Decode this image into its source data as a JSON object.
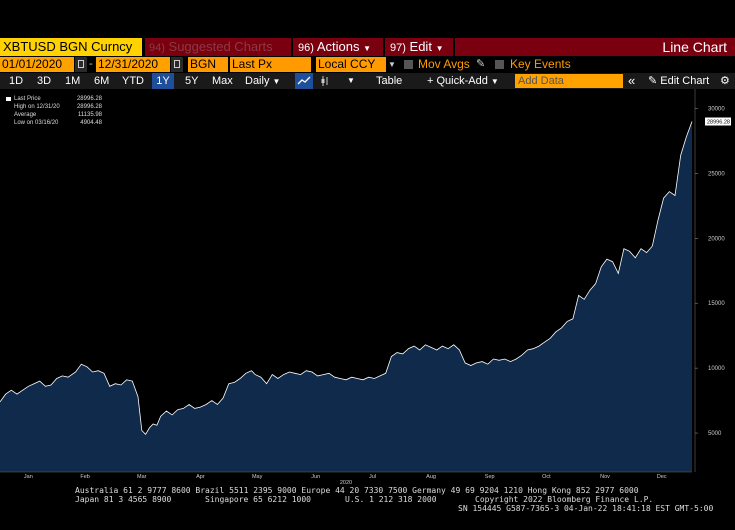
{
  "row1": {
    "ticker": "XBTUSD BGN Curncy",
    "suggested": "Suggested Charts",
    "suggested_num": "94)",
    "actions_num": "96)",
    "actions": "Actions",
    "edit_num": "97)",
    "edit": "Edit",
    "title": "Line Chart"
  },
  "row2": {
    "start_date": "01/01/2020",
    "end_date": "12/31/2020",
    "source": "BGN",
    "field": "Last Px",
    "currency": "Local CCY",
    "mov_avgs": "Mov Avgs",
    "key_events": "Key Events"
  },
  "row3": {
    "ranges": [
      "1D",
      "3D",
      "1M",
      "6M",
      "YTD",
      "1Y",
      "5Y",
      "Max"
    ],
    "selected_range": "1Y",
    "frequency": "Daily",
    "table": "Table",
    "quick_add": "+ Quick-Add",
    "add_data_placeholder": "Add Data",
    "edit_chart": "Edit Chart"
  },
  "legend": [
    {
      "label": "Last Price",
      "value": "28996.28"
    },
    {
      "label": "High on 12/31/20",
      "value": "28996.28"
    },
    {
      "label": "Average",
      "value": "11135.98"
    },
    {
      "label": "Low on 03/16/20",
      "value": "4904.48"
    }
  ],
  "colors": {
    "area_fill": "#0f2a4a",
    "line": "#ffffff",
    "menu_red": "#7a0010",
    "field_orange": "#ffa200",
    "selected_blue": "#1f4f9a"
  },
  "chart_data": {
    "type": "area",
    "series": [
      {
        "values": [
          [
            0,
            7400
          ],
          [
            3,
            8000
          ],
          [
            6,
            8300
          ],
          [
            9,
            8000
          ],
          [
            12,
            8300
          ],
          [
            15,
            8600
          ],
          [
            18,
            8800
          ],
          [
            21,
            9000
          ],
          [
            24,
            8600
          ],
          [
            27,
            8700
          ],
          [
            30,
            9200
          ],
          [
            33,
            9400
          ],
          [
            36,
            9300
          ],
          [
            40,
            9700
          ],
          [
            43,
            10300
          ],
          [
            46,
            10100
          ],
          [
            49,
            9700
          ],
          [
            52,
            9800
          ],
          [
            55,
            9600
          ],
          [
            58,
            8600
          ],
          [
            61,
            8800
          ],
          [
            64,
            8700
          ],
          [
            67,
            9100
          ],
          [
            70,
            9000
          ],
          [
            73,
            7800
          ],
          [
            75,
            5200
          ],
          [
            77,
            4904
          ],
          [
            79,
            5400
          ],
          [
            81,
            5700
          ],
          [
            83,
            5600
          ],
          [
            85,
            6300
          ],
          [
            88,
            6700
          ],
          [
            91,
            6400
          ],
          [
            94,
            6800
          ],
          [
            97,
            6900
          ],
          [
            100,
            7200
          ],
          [
            103,
            6900
          ],
          [
            106,
            7000
          ],
          [
            109,
            7200
          ],
          [
            112,
            7500
          ],
          [
            115,
            7200
          ],
          [
            118,
            7700
          ],
          [
            121,
            8800
          ],
          [
            124,
            8900
          ],
          [
            127,
            9200
          ],
          [
            130,
            9600
          ],
          [
            133,
            9800
          ],
          [
            135,
            9500
          ],
          [
            138,
            9300
          ],
          [
            141,
            8800
          ],
          [
            144,
            9500
          ],
          [
            147,
            9200
          ],
          [
            150,
            9500
          ],
          [
            153,
            9700
          ],
          [
            156,
            9600
          ],
          [
            159,
            9500
          ],
          [
            162,
            9800
          ],
          [
            165,
            9700
          ],
          [
            168,
            9400
          ],
          [
            171,
            9500
          ],
          [
            174,
            9600
          ],
          [
            177,
            9300
          ],
          [
            180,
            9200
          ],
          [
            183,
            9100
          ],
          [
            186,
            9300
          ],
          [
            189,
            9200
          ],
          [
            192,
            9100
          ],
          [
            195,
            9300
          ],
          [
            198,
            9200
          ],
          [
            201,
            9400
          ],
          [
            204,
            9600
          ],
          [
            207,
            10900
          ],
          [
            210,
            11200
          ],
          [
            213,
            11100
          ],
          [
            216,
            11500
          ],
          [
            219,
            11700
          ],
          [
            222,
            11400
          ],
          [
            225,
            11800
          ],
          [
            228,
            11600
          ],
          [
            231,
            11400
          ],
          [
            234,
            11700
          ],
          [
            237,
            11500
          ],
          [
            240,
            11800
          ],
          [
            243,
            11400
          ],
          [
            246,
            10400
          ],
          [
            249,
            10200
          ],
          [
            252,
            10400
          ],
          [
            255,
            10500
          ],
          [
            258,
            10300
          ],
          [
            261,
            10700
          ],
          [
            264,
            10600
          ],
          [
            267,
            10700
          ],
          [
            270,
            10500
          ],
          [
            273,
            10700
          ],
          [
            276,
            11000
          ],
          [
            279,
            11400
          ],
          [
            282,
            11500
          ],
          [
            285,
            11700
          ],
          [
            288,
            12000
          ],
          [
            291,
            12300
          ],
          [
            294,
            12800
          ],
          [
            297,
            13100
          ],
          [
            300,
            13600
          ],
          [
            303,
            13800
          ],
          [
            306,
            15600
          ],
          [
            309,
            15300
          ],
          [
            312,
            16000
          ],
          [
            315,
            16500
          ],
          [
            318,
            17800
          ],
          [
            321,
            18400
          ],
          [
            324,
            18200
          ],
          [
            327,
            17300
          ],
          [
            330,
            19200
          ],
          [
            333,
            19000
          ],
          [
            336,
            18500
          ],
          [
            339,
            19200
          ],
          [
            342,
            18900
          ],
          [
            345,
            19400
          ],
          [
            348,
            21400
          ],
          [
            351,
            23100
          ],
          [
            354,
            23600
          ],
          [
            357,
            23300
          ],
          [
            360,
            26400
          ],
          [
            363,
            27800
          ],
          [
            366,
            28996
          ]
        ]
      }
    ],
    "x_month_labels": [
      "Jan",
      "Feb",
      "Mar",
      "Apr",
      "May",
      "Jun",
      "Jul",
      "Aug",
      "Sep",
      "Oct",
      "Nov",
      "Dec"
    ],
    "x_year_label": "2020",
    "y_ticks": [
      5000,
      10000,
      15000,
      20000,
      25000,
      30000
    ],
    "ylim": [
      2000,
      31500
    ],
    "last_value_label": "28996.28",
    "grid": false
  },
  "footer": {
    "line1": "Australia 61 2 9777 8600 Brazil 5511 2395 9000 Europe 44 20 7330 7500 Germany 49 69 9204 1210 Hong Kong 852 2977 6000",
    "line2a": "Japan 81 3 4565 8900",
    "line2b": "Singapore 65 6212 1000",
    "line2c": "U.S. 1 212 318 2000",
    "line2d": "Copyright 2022 Bloomberg Finance L.P.",
    "line3": "SN 154445 G587-7365-3 04-Jan-22 18:41:18 EST  GMT-5:00"
  }
}
